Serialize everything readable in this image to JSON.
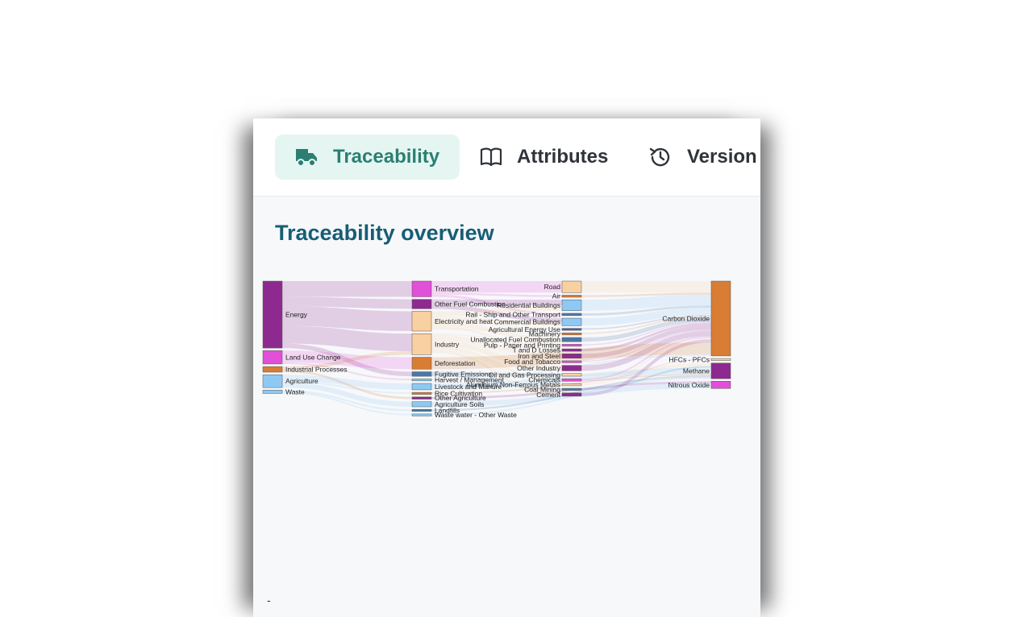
{
  "tabs": [
    {
      "label": "Traceability",
      "icon": "truck-icon",
      "active": true
    },
    {
      "label": "Attributes",
      "icon": "book-icon",
      "active": false
    },
    {
      "label": "Version History",
      "icon": "history-icon",
      "active": false
    }
  ],
  "section": {
    "title": "Traceability overview"
  },
  "footer_mark": "-",
  "colors": {
    "accent": "#2b7f72",
    "accent_bg": "#e5f6f2",
    "title": "#165e74",
    "purple": "#8e2a8f",
    "magenta": "#e24fd8",
    "orange": "#d97d35",
    "peach": "#f9d0a2",
    "sky": "#8ec9f4",
    "steel": "#4a79a8"
  },
  "chart_data": {
    "type": "sankey",
    "columns": [
      [
        {
          "id": "energy",
          "label": "Energy",
          "color": "#8e2a8f"
        },
        {
          "id": "landuse",
          "label": "Land Use Change",
          "color": "#e24fd8"
        },
        {
          "id": "industrial",
          "label": "Industrial Processes",
          "color": "#d97d35"
        },
        {
          "id": "agriculture",
          "label": "Agriculture",
          "color": "#8ec9f4"
        },
        {
          "id": "waste",
          "label": "Waste",
          "color": "#8ec9f4"
        }
      ],
      [
        {
          "id": "transportation",
          "label": "Transportation",
          "color": "#e24fd8"
        },
        {
          "id": "otherfuel",
          "label": "Other Fuel Combustion",
          "color": "#8e2a8f"
        },
        {
          "id": "electricity",
          "label": "Electricity and heat",
          "color": "#f9d0a2"
        },
        {
          "id": "industry",
          "label": "Industry",
          "color": "#f9d0a2"
        },
        {
          "id": "deforestation",
          "label": "Deforestation",
          "color": "#d97d35"
        },
        {
          "id": "fugitive",
          "label": "Fugitive Emissions",
          "color": "#4a79a8"
        },
        {
          "id": "harvest",
          "label": "Harvest / Management",
          "color": "#8ec9f4"
        },
        {
          "id": "livestock",
          "label": "Livestock and Manure",
          "color": "#8ec9f4"
        },
        {
          "id": "rice",
          "label": "Rice Cultivation",
          "color": "#d97d35"
        },
        {
          "id": "otheragri",
          "label": "Other Agriculture",
          "color": "#8e2a8f"
        },
        {
          "id": "agrisoils",
          "label": "Agriculture Soils",
          "color": "#8ec9f4"
        },
        {
          "id": "landfills",
          "label": "Landfills",
          "color": "#4a79a8"
        },
        {
          "id": "wastewater",
          "label": "Waste water - Other Waste",
          "color": "#8ec9f4"
        }
      ],
      [
        {
          "id": "road",
          "label": "Road",
          "color": "#f9d0a2"
        },
        {
          "id": "air",
          "label": "Air",
          "color": "#d97d35"
        },
        {
          "id": "residential",
          "label": "Residential Buildings",
          "color": "#8ec9f4"
        },
        {
          "id": "rail",
          "label": "Rail - Ship and Other Transport",
          "color": "#4a79a8"
        },
        {
          "id": "commercial",
          "label": "Commercial Buildings",
          "color": "#8ec9f4"
        },
        {
          "id": "agrienergy",
          "label": "Agricultural Energy Use",
          "color": "#4a5fb0"
        },
        {
          "id": "machinery",
          "label": "Machinery",
          "color": "#d97d35"
        },
        {
          "id": "unallocated",
          "label": "Unallocated Fuel Combustion",
          "color": "#4a79a8"
        },
        {
          "id": "pulp",
          "label": "Pulp - Paper and Printing",
          "color": "#e24fd8"
        },
        {
          "id": "tdlosses",
          "label": "T and D Losses",
          "color": "#8e2a8f"
        },
        {
          "id": "ironsteel",
          "label": "Iron and Steel",
          "color": "#8e2a8f"
        },
        {
          "id": "food",
          "label": "Food and Tobacco",
          "color": "#e24fd8"
        },
        {
          "id": "otherindustry",
          "label": "Other Industry",
          "color": "#8e2a8f"
        },
        {
          "id": "oilgas",
          "label": "Oil and Gas Processing",
          "color": "#f9d0a2"
        },
        {
          "id": "chemicals",
          "label": "Chemicals",
          "color": "#e24fd8"
        },
        {
          "id": "aluminium",
          "label": "Aluminium Non-Ferrous Metals",
          "color": "#f9d0a2"
        },
        {
          "id": "coal",
          "label": "Coal Mining",
          "color": "#4a79a8"
        },
        {
          "id": "cement",
          "label": "Cement",
          "color": "#8e2a8f"
        }
      ],
      [
        {
          "id": "co2",
          "label": "Carbon Dioxide",
          "color": "#d97d35"
        },
        {
          "id": "hfcs",
          "label": "HFCs - PFCs",
          "color": "#f9d0a2"
        },
        {
          "id": "methane",
          "label": "Methane",
          "color": "#8e2a8f"
        },
        {
          "id": "n2o",
          "label": "Nitrous Oxide",
          "color": "#e24fd8"
        }
      ]
    ],
    "links": [
      {
        "source": "energy",
        "target": "transportation",
        "value": 14.3
      },
      {
        "source": "energy",
        "target": "otherfuel",
        "value": 8.6
      },
      {
        "source": "energy",
        "target": "electricity",
        "value": 18.0
      },
      {
        "source": "energy",
        "target": "industry",
        "value": 16.1
      },
      {
        "source": "energy",
        "target": "fugitive",
        "value": 4.1
      },
      {
        "source": "landuse",
        "target": "deforestation",
        "value": 10.9
      },
      {
        "source": "landuse",
        "target": "harvest",
        "value": 1.3
      },
      {
        "source": "industrial",
        "target": "industry",
        "value": 3.1
      },
      {
        "source": "industrial",
        "target": "otheragri",
        "value": 2.0
      },
      {
        "source": "agriculture",
        "target": "livestock",
        "value": 5.8
      },
      {
        "source": "agriculture",
        "target": "rice",
        "value": 1.3
      },
      {
        "source": "agriculture",
        "target": "agrisoils",
        "value": 4.6
      },
      {
        "source": "waste",
        "target": "landfills",
        "value": 1.7
      },
      {
        "source": "waste",
        "target": "wastewater",
        "value": 1.3
      },
      {
        "source": "transportation",
        "target": "road",
        "value": 10.5
      },
      {
        "source": "transportation",
        "target": "air",
        "value": 1.7
      },
      {
        "source": "transportation",
        "target": "rail",
        "value": 2.1
      },
      {
        "source": "otherfuel",
        "target": "residential",
        "value": 5.0
      },
      {
        "source": "otherfuel",
        "target": "commercial",
        "value": 3.6
      },
      {
        "source": "electricity",
        "target": "residential",
        "value": 5.0
      },
      {
        "source": "electricity",
        "target": "commercial",
        "value": 3.3
      },
      {
        "source": "electricity",
        "target": "agrienergy",
        "value": 1.1
      },
      {
        "source": "electricity",
        "target": "unallocated",
        "value": 3.8
      },
      {
        "source": "electricity",
        "target": "tdlosses",
        "value": 2.2
      },
      {
        "source": "electricity",
        "target": "machinery",
        "value": 1.0
      },
      {
        "source": "industry",
        "target": "pulp",
        "value": 1.1
      },
      {
        "source": "industry",
        "target": "ironsteel",
        "value": 4.0
      },
      {
        "source": "industry",
        "target": "food",
        "value": 1.0
      },
      {
        "source": "industry",
        "target": "otherindustry",
        "value": 5.0
      },
      {
        "source": "industry",
        "target": "chemicals",
        "value": 2.2
      },
      {
        "source": "industry",
        "target": "aluminium",
        "value": 1.2
      },
      {
        "source": "industry",
        "target": "cement",
        "value": 3.0
      },
      {
        "source": "fugitive",
        "target": "oilgas",
        "value": 2.5
      },
      {
        "source": "fugitive",
        "target": "coal",
        "value": 1.6
      },
      {
        "source": "road",
        "target": "co2",
        "value": 10.5
      },
      {
        "source": "air",
        "target": "co2",
        "value": 1.7
      },
      {
        "source": "residential",
        "target": "co2",
        "value": 10.0
      },
      {
        "source": "rail",
        "target": "co2",
        "value": 2.1
      },
      {
        "source": "commercial",
        "target": "co2",
        "value": 6.9
      },
      {
        "source": "agrienergy",
        "target": "co2",
        "value": 1.1
      },
      {
        "source": "machinery",
        "target": "co2",
        "value": 1.0
      },
      {
        "source": "unallocated",
        "target": "co2",
        "value": 3.8
      },
      {
        "source": "pulp",
        "target": "co2",
        "value": 1.1
      },
      {
        "source": "tdlosses",
        "target": "co2",
        "value": 2.2
      },
      {
        "source": "ironsteel",
        "target": "co2",
        "value": 4.0
      },
      {
        "source": "food",
        "target": "co2",
        "value": 1.0
      },
      {
        "source": "otherindustry",
        "target": "co2",
        "value": 5.0
      },
      {
        "source": "oilgas",
        "target": "methane",
        "value": 2.5
      },
      {
        "source": "chemicals",
        "target": "co2",
        "value": 1.5
      },
      {
        "source": "chemicals",
        "target": "hfcs",
        "value": 0.7
      },
      {
        "source": "aluminium",
        "target": "co2",
        "value": 1.2
      },
      {
        "source": "coal",
        "target": "methane",
        "value": 1.6
      },
      {
        "source": "cement",
        "target": "co2",
        "value": 3.0
      },
      {
        "source": "deforestation",
        "target": "co2",
        "value": 10.9
      },
      {
        "source": "harvest",
        "target": "co2",
        "value": 1.3
      },
      {
        "source": "livestock",
        "target": "methane",
        "value": 5.8
      },
      {
        "source": "rice",
        "target": "methane",
        "value": 1.3
      },
      {
        "source": "otheragri",
        "target": "n2o",
        "value": 2.0
      },
      {
        "source": "agrisoils",
        "target": "n2o",
        "value": 4.6
      },
      {
        "source": "landfills",
        "target": "methane",
        "value": 1.7
      },
      {
        "source": "wastewater",
        "target": "methane",
        "value": 1.3
      }
    ]
  }
}
